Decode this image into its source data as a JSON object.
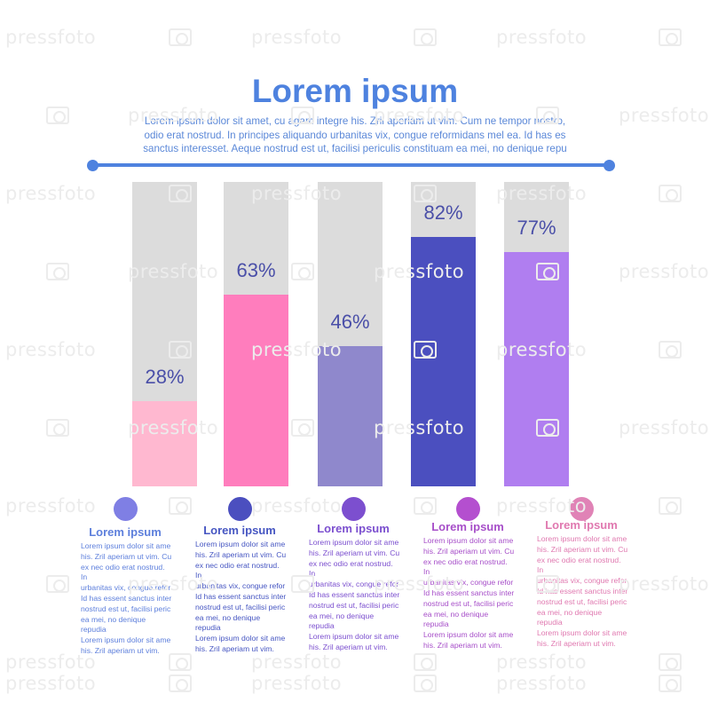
{
  "header": {
    "title": "Lorem ipsum",
    "text_lines": [
      "Lorem ipsum dolor sit amet, cu agam integre his. Zril aperiam ut vim. Cum ne tempor nostro,",
      "odio erat nostrud. In principes aliquando urbanitas vix, congue reformidans mel ea. Id has es",
      "sanctus interesset. Aeque nostrud est ut, facilisi periculis constituam ea mei, no denique repu"
    ]
  },
  "colors": {
    "title": "#4e82df",
    "divider": "#4e82df",
    "bar_track": "#dcdcdc",
    "bar_label": "#4a4fa8"
  },
  "chart_data": {
    "type": "bar",
    "title": "",
    "xlabel": "",
    "ylabel": "",
    "ylim": [
      0,
      100
    ],
    "categories": [
      "",
      "",
      "",
      "",
      ""
    ],
    "values": [
      28,
      63,
      46,
      82,
      77
    ],
    "value_labels": [
      "28%",
      "63%",
      "46%",
      "82%",
      "77%"
    ],
    "bar_colors": [
      "#ffb8d0",
      "#ff7dbd",
      "#8f88cc",
      "#4b4fbf",
      "#b07ef0"
    ],
    "grid": false,
    "legend": "none"
  },
  "items": [
    {
      "dot_color": "#7f7fe4",
      "title": "Lorem ipsum",
      "title_color": "#5d7fdc",
      "lines": [
        "Lorem ipsum dolor sit ame",
        "his. Zril aperiam ut vim. Cu",
        "ex nec odio erat nostrud. In",
        "urbanitas vix, congue refor",
        "Id has essent sanctus inter",
        "nostrud est ut, facilisi peric",
        "ea mei, no denique repudia",
        "Lorem ipsum dolor sit ame",
        "his. Zril aperiam ut vim."
      ]
    },
    {
      "dot_color": "#4b4fbf",
      "title": "Lorem ipsum",
      "title_color": "#4656c2",
      "lines": [
        "Lorem ipsum dolor sit ame",
        "his. Zril aperiam ut vim. Cu",
        "ex nec odio erat nostrud. In",
        "urbanitas vix, congue refor",
        "Id has essent sanctus inter",
        "nostrud est ut, facilisi peric",
        "ea mei, no denique repudia",
        "Lorem ipsum dolor sit ame",
        "his. Zril aperiam ut vim."
      ]
    },
    {
      "dot_color": "#7c4fcf",
      "title": "Lorem ipsum",
      "title_color": "#7b4fcf",
      "lines": [
        "Lorem ipsum dolor sit ame",
        "his. Zril aperiam ut vim. Cu",
        "ex nec odio erat nostrud. In",
        "urbanitas vix, congue refor",
        "Id has essent sanctus inter",
        "nostrud est ut, facilisi peric",
        "ea mei, no denique repudia",
        "Lorem ipsum dolor sit ame",
        "his. Zril aperiam ut vim."
      ]
    },
    {
      "dot_color": "#b44fcf",
      "title": "Lorem ipsum",
      "title_color": "#a74fc9",
      "lines": [
        "Lorem ipsum dolor sit ame",
        "his. Zril aperiam ut vim. Cu",
        "ex nec odio erat nostrud. In",
        "urbanitas vix, congue refor",
        "Id has essent sanctus inter",
        "nostrud est ut, facilisi peric",
        "ea mei, no denique repudia",
        "Lorem ipsum dolor sit ame",
        "his. Zril aperiam ut vim."
      ]
    },
    {
      "dot_color": "#e083b6",
      "title": "Lorem ipsum",
      "title_color": "#e079b0",
      "lines": [
        "Lorem ipsum dolor sit ame",
        "his. Zril aperiam ut vim. Cu",
        "ex nec odio erat nostrud. In",
        "urbanitas vix, congue refor",
        "Id has essent sanctus inter",
        "nostrud est ut, facilisi peric",
        "ea mei, no denique repudia",
        "Lorem ipsum dolor sit ame",
        "his. Zril aperiam ut vim."
      ]
    }
  ],
  "watermark": {
    "text": "pressfoto"
  }
}
